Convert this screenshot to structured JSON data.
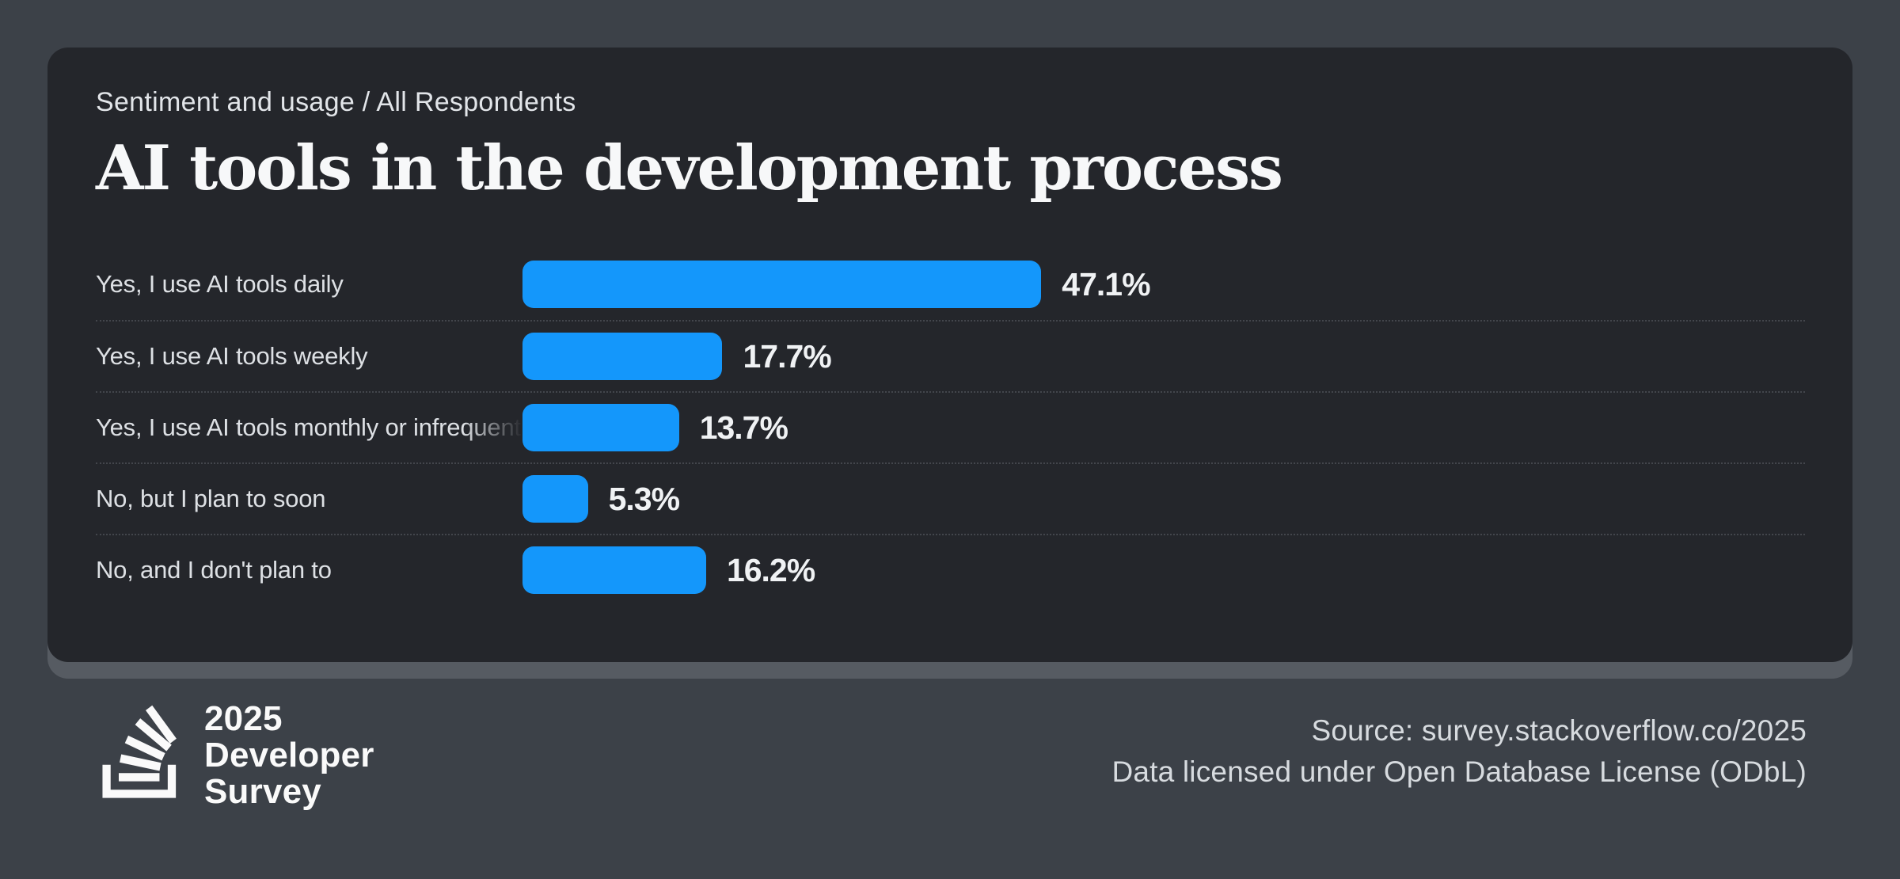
{
  "header": {
    "breadcrumb": "Sentiment and usage / All Respondents",
    "title": "AI tools in the development process"
  },
  "chart_data": {
    "type": "bar",
    "orientation": "horizontal",
    "categories": [
      "Yes, I use AI tools daily",
      "Yes, I use AI tools weekly",
      "Yes, I use AI tools monthly or infrequently",
      "No, but I plan to soon",
      "No, and I don't plan to"
    ],
    "values": [
      47.1,
      17.7,
      13.7,
      5.3,
      16.2
    ],
    "value_labels": [
      "47.1%",
      "17.7%",
      "13.7%",
      "5.3%",
      "16.2%"
    ],
    "title": "AI tools in the development process",
    "xlabel": "",
    "ylabel": "",
    "xlim": [
      0,
      100
    ],
    "grid": false,
    "legend": "none",
    "bar_color": "#1497fb",
    "row_divider_style": "dotted"
  },
  "footer": {
    "logo_lines": [
      "2025",
      "Developer",
      "Survey"
    ],
    "source_line1": "Source: survey.stackoverflow.co/2025",
    "source_line2": "Data licensed under Open Database License (ODbL)"
  },
  "colors": {
    "page_background": "#3c4148",
    "card_background": "#24262b",
    "card_edge": "#565b62",
    "bar": "#1497fb",
    "label_text": "#dde0e4",
    "value_text": "#f0f2f4",
    "title_text": "#f7f8f9",
    "footer_text": "#d7dbdf"
  }
}
